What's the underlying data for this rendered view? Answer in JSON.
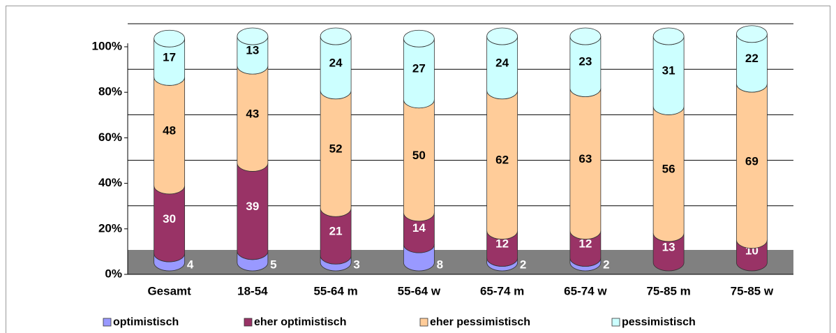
{
  "chart_data": {
    "type": "stacked_cylinder",
    "categories": [
      "Gesamt",
      "18-54",
      "55-64 m",
      "55-64 w",
      "65-74 m",
      "65-74 w",
      "75-85 m",
      "75-85 w"
    ],
    "series": [
      {
        "name": "optimistisch",
        "color": "#9999ff",
        "values": [
          4,
          5,
          3,
          8,
          2,
          2,
          null,
          null
        ]
      },
      {
        "name": "eher optimistisch",
        "color": "#993366",
        "values": [
          30,
          39,
          21,
          14,
          12,
          12,
          13,
          10
        ]
      },
      {
        "name": "eher pessimistisch",
        "color": "#ffcc99",
        "values": [
          48,
          43,
          52,
          50,
          62,
          63,
          56,
          69
        ]
      },
      {
        "name": "pessimistisch",
        "color": "#ccffff",
        "values": [
          17,
          13,
          24,
          27,
          24,
          23,
          31,
          22
        ]
      }
    ],
    "ylim": [
      0,
      100
    ],
    "yticks": [
      {
        "value": 0,
        "label": "0%"
      },
      {
        "value": 20,
        "label": "20%"
      },
      {
        "value": 40,
        "label": "40%"
      },
      {
        "value": 60,
        "label": "60%"
      },
      {
        "value": 80,
        "label": "80%"
      },
      {
        "value": 100,
        "label": "100%"
      }
    ],
    "grid": true,
    "legend": "bottom"
  }
}
